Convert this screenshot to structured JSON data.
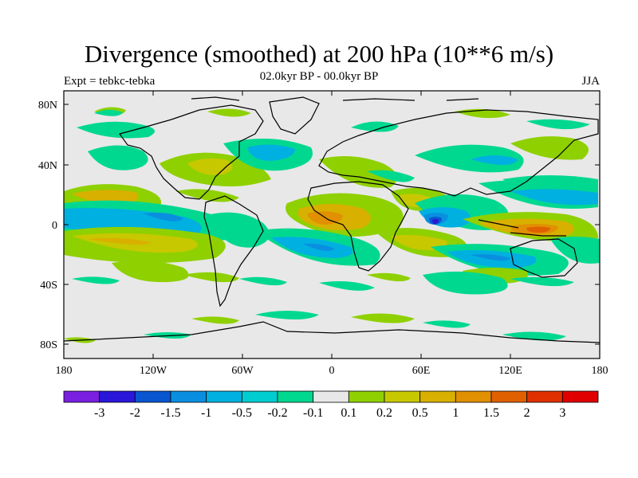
{
  "title": "Divergence (smoothed) at 200 hPa (10**6 m/s)",
  "subtitle": "02.0kyr BP - 00.0kyr BP",
  "experiment": "Expt = tebkc-tebka",
  "season": "JJA",
  "colors": {
    "background": "#e8e8e8",
    "neg_3": "#7a1fe0",
    "neg_2": "#2a16d8",
    "neg_15": "#0a55d0",
    "neg_1": "#0a8fe0",
    "neg_05": "#00b0e0",
    "neg_02": "#00cdd0",
    "neg_01": "#00d890",
    "zero": "#e8e8e8",
    "pos_01": "#8fd000",
    "pos_02": "#c8c800",
    "pos_05": "#d8b000",
    "pos_1": "#e09000",
    "pos_15": "#e06000",
    "pos_2": "#e03000",
    "pos_3": "#e00000"
  },
  "axes": {
    "lat_ticks": [
      "80N",
      "40N",
      "0",
      "40S",
      "80S"
    ],
    "lon_ticks": [
      "180",
      "120W",
      "60W",
      "0",
      "60E",
      "120E",
      "180"
    ]
  },
  "colorbar": {
    "labels": [
      "-3",
      "-2",
      "-1.5",
      "-1",
      "-0.5",
      "-0.2",
      "-0.1",
      "0.1",
      "0.2",
      "0.5",
      "1",
      "1.5",
      "2",
      "3"
    ],
    "colors": [
      "#7a1fe0",
      "#2a16d8",
      "#0a55d0",
      "#0a8fe0",
      "#00b0e0",
      "#00cdd0",
      "#00d890",
      "#e8e8e8",
      "#8fd000",
      "#c8c800",
      "#d8b000",
      "#e09000",
      "#e06000",
      "#e03000",
      "#e00000"
    ]
  }
}
